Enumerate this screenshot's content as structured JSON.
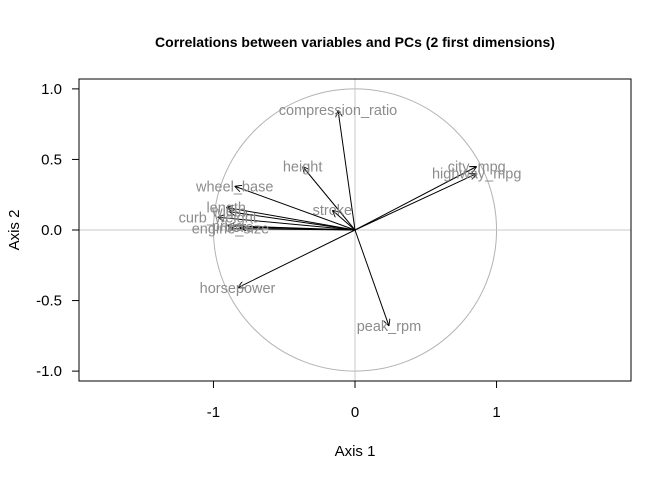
{
  "chart_data": {
    "type": "scatter",
    "title": "Correlations between variables and PCs (2 first dimensions)",
    "xlabel": "Axis 1",
    "ylabel": "Axis 2",
    "xlim": [
      -1.95,
      1.95
    ],
    "ylim": [
      -1.07,
      1.07
    ],
    "x_ticks": [
      -1,
      0,
      1
    ],
    "y_ticks": [
      -1.0,
      -0.5,
      0.0,
      0.5,
      1.0
    ],
    "x_tick_labels": [
      "-1",
      "0",
      "1"
    ],
    "y_tick_labels": [
      "-1.0",
      "-0.5",
      "0.0",
      "0.5",
      "1.0"
    ],
    "unit_circle": true,
    "reference_lines": [
      0,
      0
    ],
    "vectors": [
      {
        "name": "compression_ratio",
        "x": -0.12,
        "y": 0.85
      },
      {
        "name": "height",
        "x": -0.37,
        "y": 0.45
      },
      {
        "name": "city_mpg",
        "x": 0.86,
        "y": 0.45
      },
      {
        "name": "highway_mpg",
        "x": 0.86,
        "y": 0.4
      },
      {
        "name": "wheel_base",
        "x": -0.85,
        "y": 0.31
      },
      {
        "name": "stroke",
        "x": -0.16,
        "y": 0.14
      },
      {
        "name": "length",
        "x": -0.91,
        "y": 0.16
      },
      {
        "name": "width",
        "x": -0.89,
        "y": 0.13
      },
      {
        "name": "curb_weight",
        "x": -0.97,
        "y": 0.09
      },
      {
        "name": "bore",
        "x": -0.82,
        "y": 0.02
      },
      {
        "name": "price",
        "x": -0.9,
        "y": 0.03
      },
      {
        "name": "engine_size",
        "x": -0.88,
        "y": 0.01
      },
      {
        "name": "horsepower",
        "x": -0.83,
        "y": -0.41
      },
      {
        "name": "peak_rpm",
        "x": 0.24,
        "y": -0.68
      }
    ]
  }
}
